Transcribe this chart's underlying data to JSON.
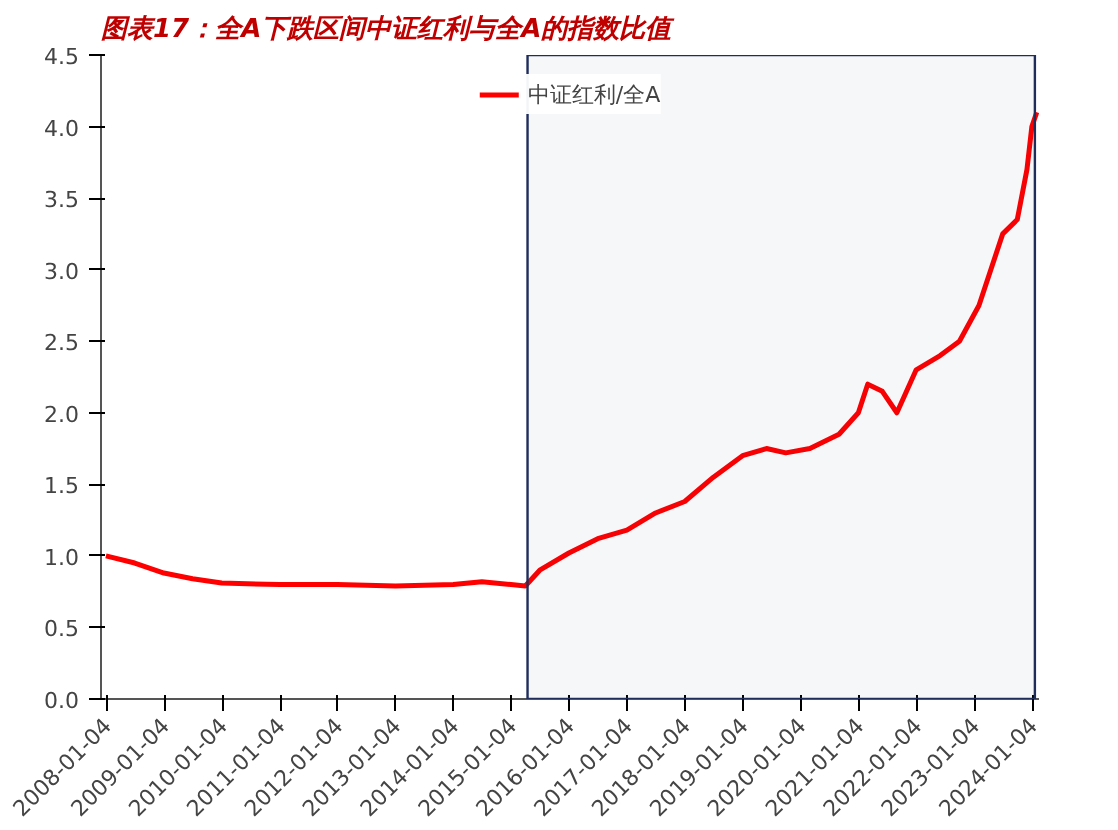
{
  "chart_data": {
    "type": "line",
    "title": "图表17：全A下跌区间中证红利与全A的指数比值",
    "x": [
      "2008-01",
      "2008-07",
      "2009-01",
      "2009-07",
      "2010-01",
      "2011-01",
      "2012-01",
      "2013-01",
      "2014-01",
      "2014-07",
      "2015-01",
      "2015-04",
      "2015-07",
      "2016-01",
      "2016-07",
      "2017-01",
      "2017-07",
      "2018-01",
      "2018-07",
      "2019-01",
      "2019-06",
      "2019-10",
      "2020-03",
      "2020-09",
      "2021-01",
      "2021-03",
      "2021-06",
      "2021-09",
      "2022-01",
      "2022-06",
      "2022-10",
      "2023-02",
      "2023-07",
      "2023-10",
      "2023-12",
      "2024-01",
      "2024-02"
    ],
    "series": [
      {
        "name": "中证红利/全A",
        "color": "#ff0000",
        "values": [
          1.0,
          0.95,
          0.88,
          0.84,
          0.81,
          0.8,
          0.8,
          0.79,
          0.8,
          0.82,
          0.8,
          0.79,
          0.9,
          1.02,
          1.12,
          1.18,
          1.3,
          1.38,
          1.55,
          1.7,
          1.75,
          1.72,
          1.75,
          1.85,
          2.0,
          2.2,
          2.15,
          2.0,
          2.3,
          2.4,
          2.5,
          2.75,
          3.25,
          3.35,
          3.7,
          4.0,
          4.1
        ]
      }
    ],
    "xlim": [
      "2007-12-01",
      "2024-02-15"
    ],
    "xticks": [
      "2008-01-04",
      "2009-01-04",
      "2010-01-04",
      "2011-01-04",
      "2012-01-04",
      "2013-01-04",
      "2014-01-04",
      "2015-01-04",
      "2016-01-04",
      "2017-01-04",
      "2018-01-04",
      "2019-01-04",
      "2020-01-04",
      "2021-01-04",
      "2022-01-04",
      "2023-01-04",
      "2024-01-04"
    ],
    "ylim": [
      0,
      4.5
    ],
    "yticks": [
      {
        "value": 0,
        "label": "0.0"
      },
      0.5,
      {
        "value": 1,
        "label": "1.0"
      },
      1.5,
      {
        "value": 2,
        "label": "2.0"
      },
      2.5,
      {
        "value": 3,
        "label": "3.0"
      },
      3.5,
      {
        "value": 4,
        "label": "4.0"
      },
      4.5
    ],
    "bands": [
      {
        "axis": "x",
        "from": "2015-04-15",
        "to": "2024-01-20",
        "color": "#1f2d5a"
      }
    ],
    "grid": false,
    "legend": "top",
    "line_style": "solid",
    "marker": "none"
  }
}
